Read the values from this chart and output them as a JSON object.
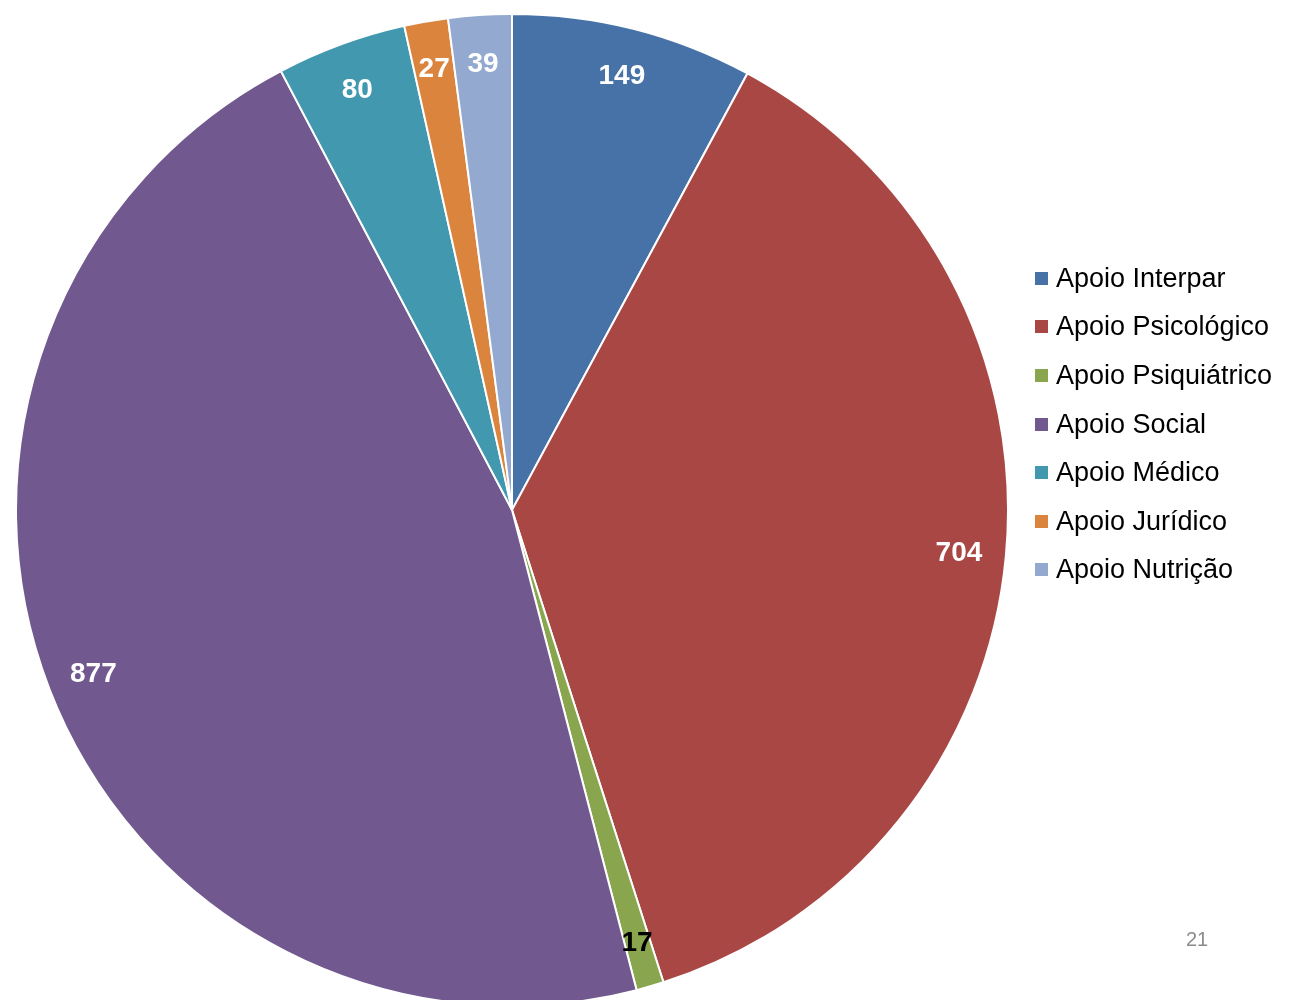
{
  "chart_data": {
    "type": "pie",
    "categories": [
      "Apoio Interpar",
      "Apoio Psicológico",
      "Apoio Psiquiátrico",
      "Apoio Social",
      "Apoio Médico",
      "Apoio Jurídico",
      "Apoio Nutrição"
    ],
    "values": [
      149,
      704,
      17,
      877,
      80,
      27,
      39
    ],
    "colors": [
      "#4672a8",
      "#a94744",
      "#89a54e",
      "#71588f",
      "#4298af",
      "#db843d",
      "#93a9cf"
    ],
    "data_labels": true,
    "legend": "right",
    "annotations": [
      "21"
    ]
  }
}
